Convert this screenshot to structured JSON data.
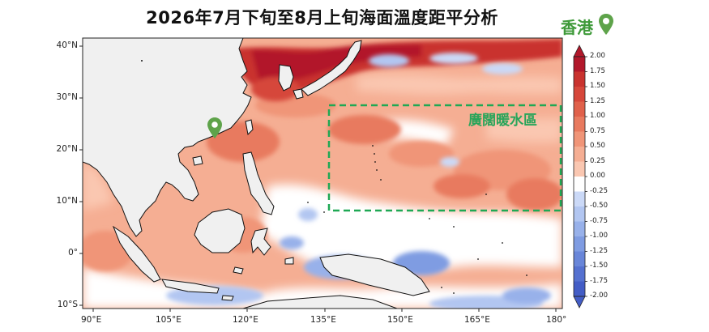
{
  "title": "2026年7月下旬至8月上旬海面溫度距平分析",
  "hk_marker": {
    "label": "香港",
    "icon": "location-pin-icon",
    "color": "#4f9a3c"
  },
  "warm_region": {
    "label": "廣闊暖水區",
    "color": "#1fa854"
  },
  "map": {
    "lon_range": [
      88,
      181
    ],
    "lat_range": [
      -11,
      41.5
    ],
    "lat_ticks": [
      "40°N",
      "30°N",
      "20°N",
      "10°N",
      "0°",
      "10°S"
    ],
    "lon_ticks": [
      "90°E",
      "105°E",
      "120°E",
      "135°E",
      "150°E",
      "165°E",
      "180°"
    ],
    "land_color": "#f0f0f0"
  },
  "colorbar": {
    "ticks": [
      "2.00",
      "1.75",
      "1.50",
      "1.25",
      "1.00",
      "0.75",
      "0.50",
      "0.25",
      "0.00",
      "-0.25",
      "-0.50",
      "-0.75",
      "-1.00",
      "-1.25",
      "-1.50",
      "-1.75",
      "-2.00"
    ],
    "colors": [
      "#b2182b",
      "#c9332f",
      "#d6473b",
      "#e0614b",
      "#e87a5f",
      "#f09578",
      "#f5ae93",
      "#fac7b1",
      "#ffffff",
      "#cbd9f7",
      "#b2c6f1",
      "#98b1ea",
      "#7f9ce2",
      "#6986d9",
      "#5571d0",
      "#435dc6"
    ]
  }
}
